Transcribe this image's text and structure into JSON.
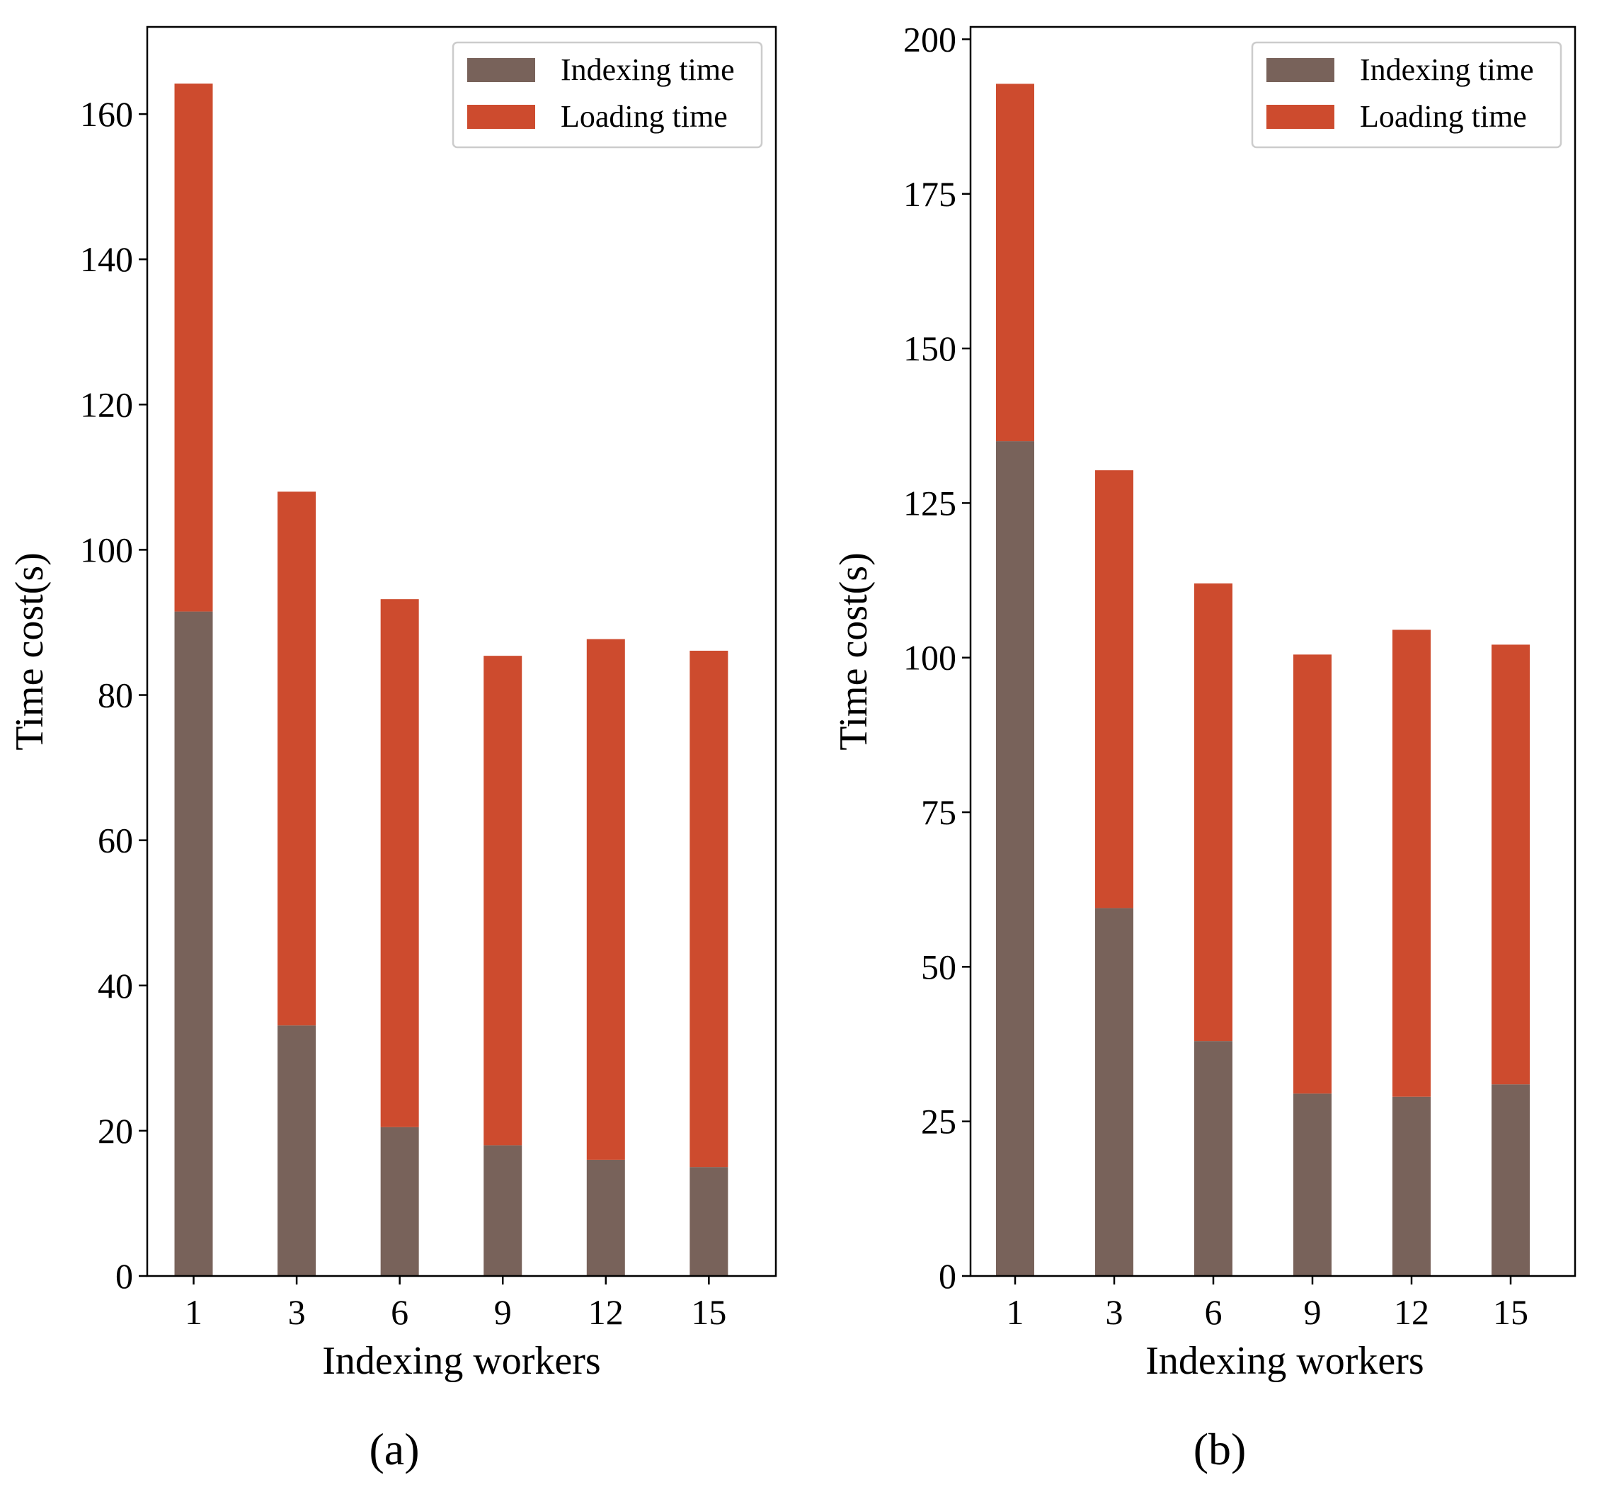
{
  "colors": {
    "indexing": "#78625a",
    "loading": "#cd4b2e"
  },
  "chart_data": [
    {
      "type": "bar",
      "stacked": true,
      "panel": "a",
      "panel_label": "(a)",
      "categories": [
        "1",
        "3",
        "6",
        "9",
        "12",
        "15"
      ],
      "series": [
        {
          "name": "Indexing time",
          "values": [
            91.5,
            34.5,
            20.5,
            18,
            16,
            15
          ]
        },
        {
          "name": "Loading time",
          "values": [
            72.7,
            73.5,
            72.7,
            67.4,
            71.7,
            71.1
          ]
        }
      ],
      "xlabel": "Indexing workers",
      "ylabel": "Time cost(s)",
      "ylim": [
        0,
        172
      ],
      "yticks": [
        0,
        20,
        40,
        60,
        80,
        100,
        120,
        140,
        160
      ],
      "legend": [
        "Indexing time",
        "Loading time"
      ],
      "legend_position": "top-right"
    },
    {
      "type": "bar",
      "stacked": true,
      "panel": "b",
      "panel_label": "(b)",
      "categories": [
        "1",
        "3",
        "6",
        "9",
        "12",
        "15"
      ],
      "series": [
        {
          "name": "Indexing time",
          "values": [
            135,
            59.5,
            38,
            29.5,
            29,
            31
          ]
        },
        {
          "name": "Loading time",
          "values": [
            57.8,
            70.8,
            74,
            71,
            75.5,
            71.1
          ]
        }
      ],
      "xlabel": "Indexing workers",
      "ylabel": "Time cost(s)",
      "ylim": [
        0,
        202
      ],
      "yticks": [
        0,
        25,
        50,
        75,
        100,
        125,
        150,
        175,
        200
      ],
      "legend": [
        "Indexing time",
        "Loading time"
      ],
      "legend_position": "top-right"
    }
  ]
}
